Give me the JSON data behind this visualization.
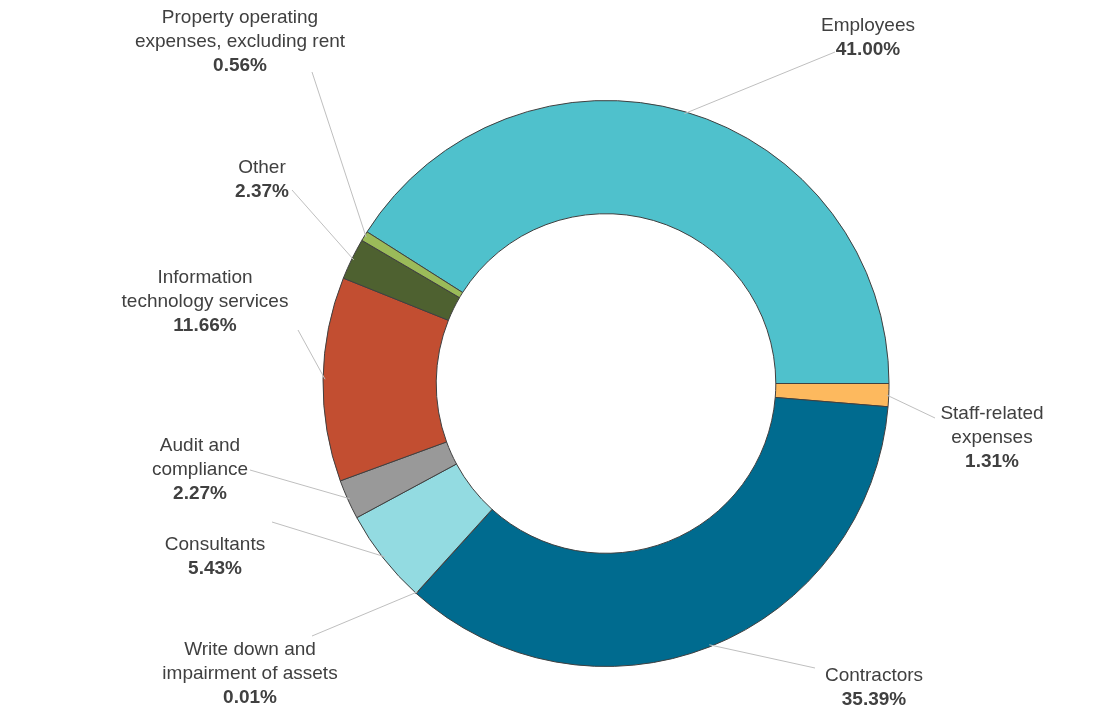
{
  "chart_data": {
    "type": "donut",
    "categories": [
      "Employees",
      "Staff-related expenses",
      "Contractors",
      "Write down and impairment of assets",
      "Consultants",
      "Audit and compliance",
      "Information technology services",
      "Other",
      "Property operating expenses, excluding rent"
    ],
    "values": [
      41.0,
      1.31,
      35.39,
      0.01,
      5.43,
      2.27,
      11.66,
      2.37,
      0.56
    ],
    "value_labels": [
      "41.00%",
      "1.31%",
      "35.39%",
      "0.01%",
      "5.43%",
      "2.27%",
      "11.66%",
      "2.37%",
      "0.56%"
    ],
    "colors": [
      "#4fc1cc",
      "#fdb95e",
      "#006b8f",
      "#1f4e79",
      "#93dbe1",
      "#999999",
      "#c24e31",
      "#4e6130",
      "#9bbb59"
    ],
    "legend": false
  }
}
